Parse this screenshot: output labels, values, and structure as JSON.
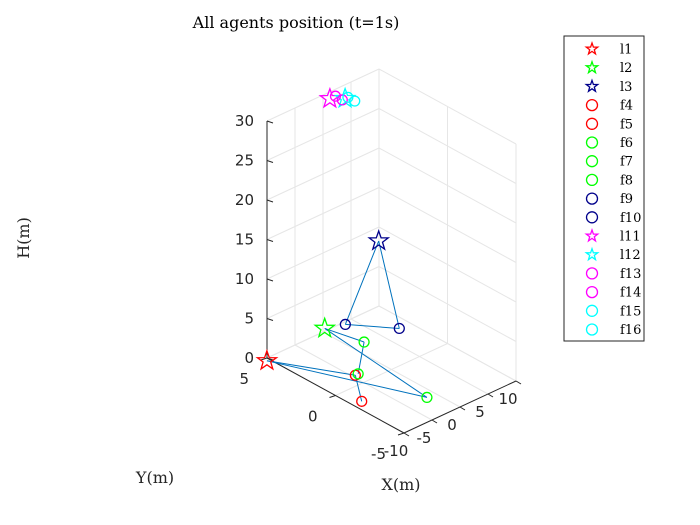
{
  "chart_data": {
    "type": "scatter3d",
    "title": "All agents position (t=1s)",
    "xlabel": "X(m)",
    "ylabel": "Y(m)",
    "zlabel": "H(m)",
    "xlim": [
      -10,
      10
    ],
    "ylim": [
      -5,
      5
    ],
    "zlim": [
      0,
      30
    ],
    "x_ticks": [
      "-10",
      "-5",
      "0",
      "5",
      "10"
    ],
    "y_ticks": [
      "-5",
      "0",
      "5"
    ],
    "z_ticks": [
      "0",
      "5",
      "10",
      "15",
      "20",
      "25",
      "30"
    ],
    "grid": true,
    "legend_position": "right",
    "colors": {
      "red": "#ff0000",
      "green": "#00ff00",
      "blue": "#00008b",
      "magenta": "#ff00ff",
      "cyan": "#00ffff",
      "link": "#0072bd"
    },
    "series": [
      {
        "name": "l1",
        "marker": "star",
        "color": "red",
        "x": -10.5,
        "y": 4.8,
        "z": 0
      },
      {
        "name": "l2",
        "marker": "star",
        "color": "green",
        "x": 0.8,
        "y": 5.2,
        "z": 0
      },
      {
        "name": "l3",
        "marker": "star",
        "color": "blue",
        "x": 7.5,
        "y": 4.0,
        "z": 10
      },
      {
        "name": "f4",
        "marker": "circle",
        "color": "red",
        "x": -8.5,
        "y": -1.3,
        "z": 0
      },
      {
        "name": "f5",
        "marker": "circle",
        "color": "red",
        "x": -4.5,
        "y": 0.8,
        "z": 0
      },
      {
        "name": "f6",
        "marker": "circle",
        "color": "green",
        "x": -4.0,
        "y": 0.8,
        "z": 0
      },
      {
        "name": "f7",
        "marker": "circle",
        "color": "green",
        "x": 2.2,
        "y": 2.9,
        "z": 0
      },
      {
        "name": "f8",
        "marker": "circle",
        "color": "green",
        "x": -1.5,
        "y": -3.2,
        "z": 0
      },
      {
        "name": "f9",
        "marker": "circle",
        "color": "blue",
        "x": 3.5,
        "y": 4.8,
        "z": 0
      },
      {
        "name": "f10",
        "marker": "circle",
        "color": "blue",
        "x": 8.0,
        "y": 2.7,
        "z": 0
      },
      {
        "name": "l11",
        "marker": "star",
        "color": "magenta",
        "x": 0.0,
        "y": 4.5,
        "z": 30
      },
      {
        "name": "l12",
        "marker": "star",
        "color": "cyan",
        "x": 1.5,
        "y": 4.0,
        "z": 30
      },
      {
        "name": "f13",
        "marker": "circle",
        "color": "magenta",
        "x": 1.0,
        "y": 4.5,
        "z": 30
      },
      {
        "name": "f14",
        "marker": "circle",
        "color": "magenta",
        "x": 1.0,
        "y": 4.0,
        "z": 30
      },
      {
        "name": "f15",
        "marker": "circle",
        "color": "cyan",
        "x": 2.0,
        "y": 4.0,
        "z": 30
      },
      {
        "name": "f16",
        "marker": "circle",
        "color": "cyan",
        "x": 2.0,
        "y": 3.5,
        "z": 30
      }
    ],
    "links": [
      [
        "l1",
        "f5"
      ],
      [
        "l1",
        "f8"
      ],
      [
        "f4",
        "f5"
      ],
      [
        "l2",
        "f7"
      ],
      [
        "l2",
        "f8"
      ],
      [
        "f6",
        "f7"
      ],
      [
        "l3",
        "f9"
      ],
      [
        "l3",
        "f10"
      ],
      [
        "f9",
        "f10"
      ]
    ]
  }
}
